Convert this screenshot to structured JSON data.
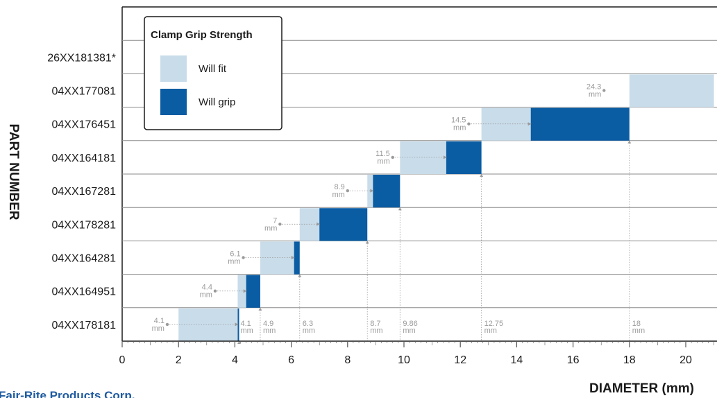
{
  "chart_data": {
    "type": "bar",
    "orientation": "horizontal-range",
    "xlabel": "DIAMETER (mm)",
    "ylabel": "PART NUMBER",
    "xlim": [
      0,
      21
    ],
    "x_ticks": [
      0,
      2,
      4,
      6,
      8,
      10,
      12,
      14,
      16,
      18,
      20
    ],
    "legend": {
      "title": "Clamp Grip Strength",
      "placement": "top-left",
      "entries": [
        {
          "name": "Will fit",
          "color": "#c9dcea"
        },
        {
          "name": "Will grip",
          "color": "#0a5ca3"
        }
      ]
    },
    "categories": [
      "26XX181381*",
      "04XX177081",
      "04XX176451",
      "04XX164181",
      "04XX167281",
      "04XX178281",
      "04XX164281",
      "04XX164951",
      "04XX178181"
    ],
    "series": [
      {
        "name": "Will fit",
        "color": "#c9dcea",
        "values": [
          null,
          [
            18.0,
            21.0
          ],
          [
            12.75,
            14.5
          ],
          [
            9.86,
            11.5
          ],
          [
            8.7,
            8.9
          ],
          [
            6.3,
            7.0
          ],
          [
            4.9,
            6.1
          ],
          [
            4.1,
            4.4
          ],
          [
            2.0,
            4.1
          ]
        ]
      },
      {
        "name": "Will grip",
        "color": "#0a5ca3",
        "values": [
          null,
          null,
          [
            14.5,
            18.0
          ],
          [
            11.5,
            12.75
          ],
          [
            8.9,
            9.86
          ],
          [
            7.0,
            8.7
          ],
          [
            6.1,
            6.3
          ],
          [
            4.4,
            4.9
          ],
          [
            4.1,
            4.15
          ]
        ]
      }
    ],
    "annotations": [
      {
        "row": 1,
        "value": "24.3",
        "unit": "mm",
        "at": 17.1
      },
      {
        "row": 2,
        "value": "14.5",
        "unit": "mm",
        "at": 12.3
      },
      {
        "row": 3,
        "value": "11.5",
        "unit": "mm",
        "at": 9.6
      },
      {
        "row": 4,
        "value": "8.9",
        "unit": "mm",
        "at": 8.0
      },
      {
        "row": 5,
        "value": "7",
        "unit": "mm",
        "at": 5.6
      },
      {
        "row": 6,
        "value": "6.1",
        "unit": "mm",
        "at": 4.3
      },
      {
        "row": 7,
        "value": "4.4",
        "unit": "mm",
        "at": 3.3
      },
      {
        "row": 8,
        "value": "4.1",
        "unit": "mm",
        "at": 1.6
      }
    ],
    "bottom_labels": [
      {
        "value": "4.1",
        "unit": "mm",
        "at": 4.1
      },
      {
        "value": "4.9",
        "unit": "mm",
        "at": 4.9
      },
      {
        "value": "6.3",
        "unit": "mm",
        "at": 6.3
      },
      {
        "value": "8.7",
        "unit": "mm",
        "at": 8.7
      },
      {
        "value": "9.86",
        "unit": "mm",
        "at": 9.86
      },
      {
        "value": "12.75",
        "unit": "mm",
        "at": 12.75
      },
      {
        "value": "18",
        "unit": "mm",
        "at": 18.0
      }
    ]
  },
  "footer": {
    "company": "Fair-Rite Products Corp."
  }
}
